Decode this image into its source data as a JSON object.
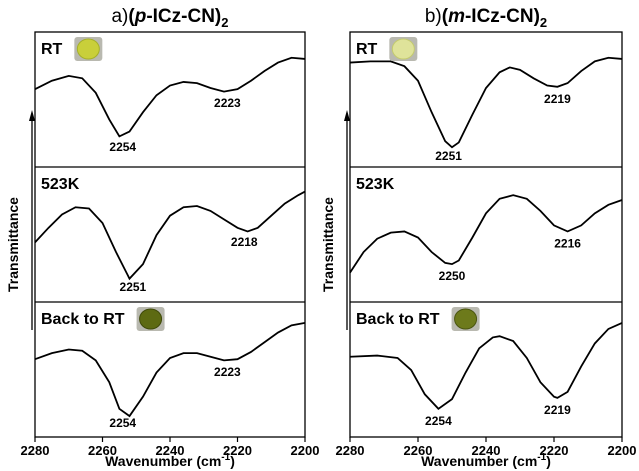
{
  "chart_data": [
    {
      "type": "line",
      "title": {
        "label": "a)",
        "open": "(",
        "italic": "p",
        "rest": "-ICz-CN)",
        "sub": "2"
      },
      "ylabel": "Transmittance",
      "xlabel": {
        "text": "Wavenumber (cm",
        "sup": "-1",
        "close": ")"
      },
      "xlim": [
        2280,
        2200
      ],
      "xticks": [
        2280,
        2260,
        2240,
        2220,
        2200
      ],
      "ylim": [
        0,
        1
      ],
      "series": [
        {
          "name": "RT",
          "color": "#000000",
          "peaks": [
            2254,
            2223
          ],
          "x": [
            2280,
            2275,
            2270,
            2266,
            2262,
            2258,
            2255,
            2252,
            2248,
            2244,
            2240,
            2236,
            2232,
            2228,
            2224,
            2220,
            2216,
            2212,
            2208,
            2204,
            2200
          ],
          "values": [
            0.61,
            0.68,
            0.72,
            0.7,
            0.58,
            0.36,
            0.22,
            0.26,
            0.42,
            0.56,
            0.64,
            0.67,
            0.66,
            0.62,
            0.59,
            0.61,
            0.68,
            0.76,
            0.83,
            0.87,
            0.86
          ]
        },
        {
          "name": "523K",
          "color": "#000000",
          "peaks": [
            2251,
            2218
          ],
          "x": [
            2280,
            2276,
            2272,
            2268,
            2264,
            2260,
            2256,
            2252,
            2248,
            2244,
            2240,
            2236,
            2232,
            2228,
            2224,
            2220,
            2217,
            2214,
            2210,
            2206,
            2202,
            2200
          ],
          "values": [
            0.46,
            0.58,
            0.69,
            0.75,
            0.74,
            0.62,
            0.38,
            0.16,
            0.28,
            0.52,
            0.68,
            0.75,
            0.76,
            0.72,
            0.65,
            0.58,
            0.55,
            0.58,
            0.68,
            0.78,
            0.85,
            0.88
          ]
        },
        {
          "name": "Back to RT",
          "color": "#000000",
          "peaks": [
            2254,
            2223
          ],
          "x": [
            2280,
            2275,
            2270,
            2266,
            2262,
            2258,
            2255,
            2252,
            2248,
            2244,
            2240,
            2236,
            2232,
            2228,
            2224,
            2220,
            2216,
            2212,
            2208,
            2204,
            2200
          ],
          "values": [
            0.61,
            0.66,
            0.69,
            0.68,
            0.6,
            0.42,
            0.2,
            0.14,
            0.3,
            0.5,
            0.62,
            0.66,
            0.66,
            0.63,
            0.6,
            0.61,
            0.67,
            0.75,
            0.83,
            0.89,
            0.91
          ]
        }
      ]
    },
    {
      "type": "line",
      "title": {
        "label": "b)",
        "open": "(",
        "italic": "m",
        "rest": "-ICz-CN)",
        "sub": "2"
      },
      "ylabel": "Transmittance",
      "xlabel": {
        "text": "Wavenumber (cm",
        "sup": "-1",
        "close": ")"
      },
      "xlim": [
        2280,
        2200
      ],
      "xticks": [
        2280,
        2260,
        2240,
        2220,
        2200
      ],
      "ylim": [
        0,
        1
      ],
      "series": [
        {
          "name": "RT",
          "color": "#000000",
          "peaks": [
            2251,
            2219
          ],
          "x": [
            2280,
            2274,
            2268,
            2264,
            2260,
            2256,
            2252,
            2250,
            2248,
            2244,
            2240,
            2236,
            2233,
            2230,
            2226,
            2222,
            2219,
            2216,
            2212,
            2208,
            2204,
            2200
          ],
          "values": [
            0.83,
            0.84,
            0.84,
            0.8,
            0.68,
            0.42,
            0.18,
            0.13,
            0.17,
            0.4,
            0.62,
            0.75,
            0.79,
            0.77,
            0.7,
            0.64,
            0.63,
            0.66,
            0.76,
            0.84,
            0.87,
            0.86
          ]
        },
        {
          "name": "523K",
          "color": "#000000",
          "peaks": [
            2250,
            2216
          ],
          "x": [
            2280,
            2276,
            2272,
            2268,
            2264,
            2260,
            2256,
            2252,
            2250,
            2248,
            2244,
            2240,
            2236,
            2232,
            2228,
            2224,
            2220,
            2216,
            2212,
            2208,
            2204,
            2200
          ],
          "values": [
            0.21,
            0.38,
            0.49,
            0.54,
            0.55,
            0.5,
            0.38,
            0.29,
            0.28,
            0.31,
            0.5,
            0.7,
            0.82,
            0.85,
            0.82,
            0.72,
            0.6,
            0.55,
            0.6,
            0.7,
            0.77,
            0.81
          ]
        },
        {
          "name": "Back to RT",
          "color": "#000000",
          "peaks": [
            2254,
            2219
          ],
          "x": [
            2280,
            2272,
            2266,
            2262,
            2258,
            2254,
            2250,
            2246,
            2242,
            2238,
            2236,
            2232,
            2228,
            2224,
            2220,
            2219,
            2216,
            2212,
            2208,
            2204,
            2200
          ],
          "values": [
            0.63,
            0.64,
            0.62,
            0.52,
            0.32,
            0.2,
            0.28,
            0.5,
            0.7,
            0.79,
            0.8,
            0.76,
            0.62,
            0.42,
            0.3,
            0.29,
            0.34,
            0.55,
            0.74,
            0.86,
            0.91
          ]
        }
      ]
    }
  ]
}
